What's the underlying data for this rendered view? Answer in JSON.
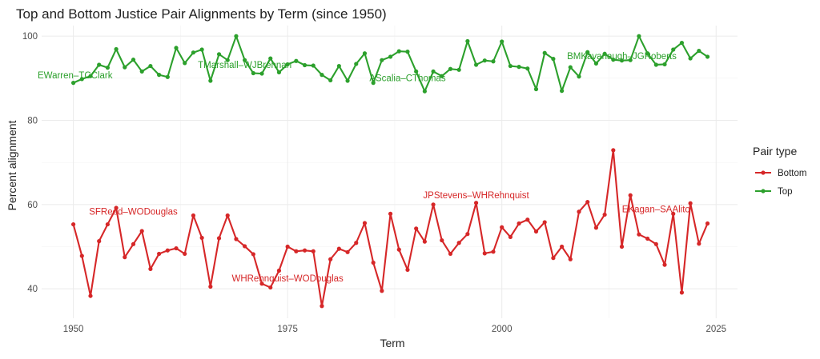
{
  "chart_data": {
    "type": "line",
    "title": "Top and Bottom Justice Pair Alignments by Term (since 1950)",
    "xlabel": "Term",
    "ylabel": "Percent alignment",
    "xlim": [
      1946.3,
      1927.5
    ],
    "xlim_note": "",
    "x_range": [
      1946.3,
      2027.5
    ],
    "y_range": [
      33.0,
      102.5
    ],
    "x_ticks": [
      1950,
      1975,
      2000,
      2025
    ],
    "y_ticks": [
      40,
      60,
      80,
      100
    ],
    "grid": true,
    "legend": {
      "title": "Pair type",
      "position": "right",
      "entries": [
        "Bottom",
        "Top"
      ]
    },
    "colors": {
      "Bottom": "#d62728",
      "Top": "#2ca02c",
      "grid": "#ebebeb",
      "text": "#222222",
      "axis_text": "#4d4d4d"
    },
    "x": [
      1950,
      1951,
      1952,
      1953,
      1954,
      1955,
      1956,
      1957,
      1958,
      1959,
      1960,
      1961,
      1962,
      1963,
      1964,
      1965,
      1966,
      1967,
      1968,
      1969,
      1970,
      1971,
      1972,
      1973,
      1974,
      1975,
      1976,
      1977,
      1978,
      1979,
      1980,
      1981,
      1982,
      1983,
      1984,
      1985,
      1986,
      1987,
      1988,
      1989,
      1990,
      1991,
      1992,
      1993,
      1994,
      1995,
      1996,
      1997,
      1998,
      1999,
      2000,
      2001,
      2002,
      2003,
      2004,
      2005,
      2006,
      2007,
      2008,
      2009,
      2010,
      2011,
      2012,
      2013,
      2014,
      2015,
      2016,
      2017,
      2018,
      2019,
      2020,
      2021,
      2022,
      2023,
      2024
    ],
    "series": [
      {
        "name": "Bottom",
        "values": [
          55.3,
          47.8,
          38.3,
          51.3,
          55.3,
          59.2,
          47.5,
          50.6,
          53.7,
          44.7,
          48.3,
          49.1,
          49.6,
          48.3,
          57.4,
          52.1,
          40.5,
          52.0,
          57.4,
          51.8,
          50.1,
          48.2,
          41.2,
          40.3,
          44.3,
          50.0,
          48.9,
          49.1,
          48.9,
          35.9,
          47.0,
          49.5,
          48.7,
          50.9,
          55.6,
          46.2,
          39.5,
          57.8,
          49.3,
          44.5,
          54.3,
          51.2,
          60.0,
          51.5,
          48.3,
          50.9,
          53.0,
          60.4,
          48.4,
          48.8,
          54.6,
          52.3,
          55.5,
          56.4,
          53.6,
          55.8,
          47.3,
          50.0,
          47.0,
          58.3,
          60.6,
          54.5,
          57.6,
          72.9,
          50.0,
          62.2,
          52.9,
          51.9,
          50.6,
          45.7,
          57.8,
          39.1,
          60.3,
          50.7,
          55.5
        ]
      },
      {
        "name": "Top",
        "values": [
          88.9,
          89.8,
          90.5,
          93.2,
          92.5,
          96.9,
          92.6,
          94.4,
          91.6,
          92.9,
          90.8,
          90.3,
          97.2,
          93.6,
          96.1,
          96.8,
          89.4,
          95.7,
          94.3,
          100.0,
          94.3,
          91.2,
          91.1,
          94.7,
          91.4,
          93.3,
          94.1,
          93.1,
          93.0,
          90.8,
          89.5,
          92.9,
          89.4,
          93.4,
          95.9,
          88.9,
          94.3,
          95.1,
          96.4,
          96.3,
          91.6,
          86.9,
          91.6,
          90.5,
          92.2,
          92.0,
          98.8,
          93.2,
          94.2,
          94.0,
          98.7,
          92.9,
          92.7,
          92.3,
          87.4,
          96.0,
          94.6,
          87.0,
          92.6,
          90.4,
          96.2,
          93.5,
          95.8,
          94.4,
          94.2,
          94.3,
          100.0,
          95.9,
          93.2,
          93.3,
          96.8,
          98.4,
          94.7,
          96.5,
          95.1
        ]
      }
    ],
    "annotations": [
      {
        "text": "EWarren–TCClark",
        "x": 1950.2,
        "y": 90.0,
        "series": "Top"
      },
      {
        "text": "TMarshall–WJBrennan",
        "x": 1970.0,
        "y": 92.4,
        "series": "Top"
      },
      {
        "text": "AScalia–CThomas",
        "x": 1989.0,
        "y": 89.3,
        "series": "Top"
      },
      {
        "text": "BMKavanaugh–JGRoberts",
        "x": 2014.0,
        "y": 94.5,
        "series": "Top"
      },
      {
        "text": "SFReed–WODouglas",
        "x": 1957.0,
        "y": 57.6,
        "series": "Bottom"
      },
      {
        "text": "WHRehnquist–WODouglas",
        "x": 1975.0,
        "y": 41.7,
        "series": "Bottom"
      },
      {
        "text": "JPStevens–WHRehnquist",
        "x": 1997.0,
        "y": 61.5,
        "series": "Bottom"
      },
      {
        "text": "EKagan–SAAlito",
        "x": 2018.0,
        "y": 58.2,
        "series": "Bottom"
      }
    ]
  }
}
